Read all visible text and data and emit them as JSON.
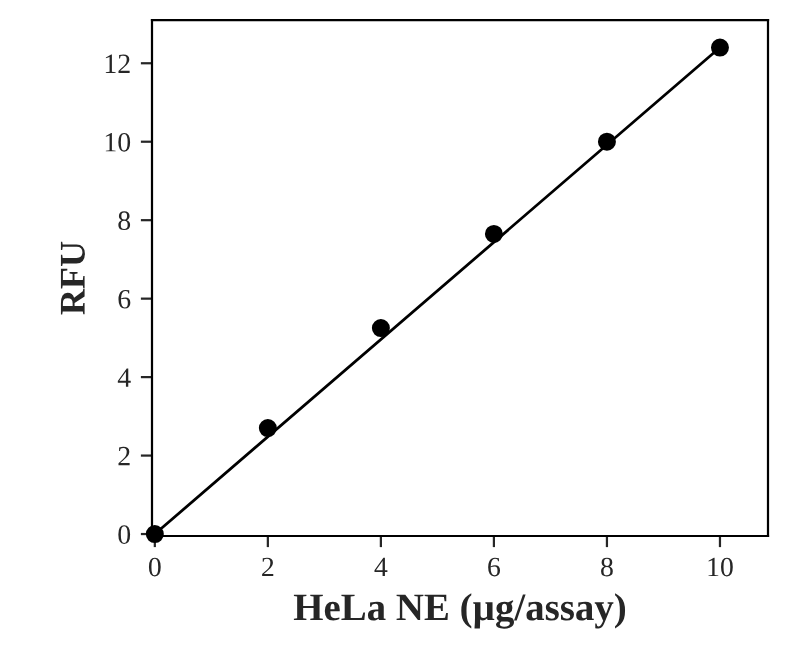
{
  "chart_data": {
    "type": "scatter",
    "xlabel": "HeLa NE (µg/assay)",
    "ylabel": "RFU",
    "xlim": [
      -0.05,
      10.85
    ],
    "ylim": [
      -0.05,
      13.1
    ],
    "xticks": [
      0,
      2,
      4,
      6,
      8,
      10
    ],
    "yticks": [
      0,
      2,
      4,
      6,
      8,
      10,
      12
    ],
    "grid": false,
    "legend": false,
    "series": [
      {
        "color": "#000000",
        "marker": "circle",
        "x": [
          0,
          2,
          4,
          6,
          8,
          10
        ],
        "values": [
          0,
          2.7,
          5.25,
          7.65,
          10,
          12.4
        ]
      },
      {
        "type": "line",
        "color": "#000000",
        "marker": "none",
        "x": [
          0,
          10
        ],
        "values": [
          0,
          12.4
        ],
        "line_style": "solid"
      }
    ]
  }
}
